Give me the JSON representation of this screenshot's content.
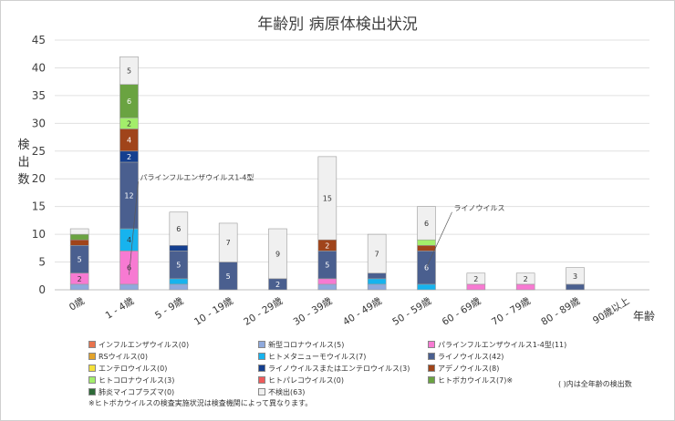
{
  "chart_data": {
    "type": "bar",
    "stacked": true,
    "title": "年齢別 病原体検出状況",
    "ylabel": "検出数",
    "xlabel": "年齢",
    "ylim": [
      0,
      45
    ],
    "yticks": [
      0,
      5,
      10,
      15,
      20,
      25,
      30,
      35,
      40,
      45
    ],
    "grid": true,
    "legend_position": "bottom",
    "categories": [
      "0歳",
      "1 - 4歳",
      "5 - 9歳",
      "10 - 19歳",
      "20 - 29歳",
      "30 - 39歳",
      "40 - 49歳",
      "50 - 59歳",
      "60 - 69歳",
      "70 - 79歳",
      "80 - 89歳",
      "90歳以上"
    ],
    "series": [
      {
        "name": "インフルエンザウイルス(0)",
        "color": "#e8734d",
        "values": [
          0,
          0,
          0,
          0,
          0,
          0,
          0,
          0,
          0,
          0,
          0,
          0
        ]
      },
      {
        "name": "新型コロナウイルス(5)",
        "color": "#8fa9dc",
        "values": [
          1,
          1,
          1,
          0,
          0,
          1,
          1,
          0,
          0,
          0,
          0,
          0
        ]
      },
      {
        "name": "パラインフルエンザウイルス1-4型(11)",
        "color": "#f77ad2",
        "values": [
          2,
          6,
          0,
          0,
          0,
          1,
          0,
          0,
          1,
          1,
          0,
          0
        ]
      },
      {
        "name": "RSウイルス(0)",
        "color": "#e3a32a",
        "values": [
          0,
          0,
          0,
          0,
          0,
          0,
          0,
          0,
          0,
          0,
          0,
          0
        ]
      },
      {
        "name": "ヒトメタニューモウイルス(7)",
        "color": "#17b3ee",
        "values": [
          0,
          4,
          1,
          0,
          0,
          0,
          1,
          1,
          0,
          0,
          0,
          0
        ]
      },
      {
        "name": "ライノウイルス(42)",
        "color": "#4a5f8f",
        "values": [
          5,
          12,
          5,
          5,
          2,
          5,
          1,
          6,
          0,
          0,
          1,
          0
        ]
      },
      {
        "name": "エンテロウイルス(0)",
        "color": "#f5e13a",
        "values": [
          0,
          0,
          0,
          0,
          0,
          0,
          0,
          0,
          0,
          0,
          0,
          0
        ]
      },
      {
        "name": "ライノウイルスまたはエンテロウイルス(3)",
        "color": "#143f8f",
        "values": [
          0,
          2,
          1,
          0,
          0,
          0,
          0,
          0,
          0,
          0,
          0,
          0
        ]
      },
      {
        "name": "アデノウイルス(8)",
        "color": "#a0441a",
        "values": [
          1,
          4,
          0,
          0,
          0,
          2,
          0,
          1,
          0,
          0,
          0,
          0
        ]
      },
      {
        "name": "ヒトコロナウイルス(3)",
        "color": "#a3ee6b",
        "values": [
          0,
          2,
          0,
          0,
          0,
          0,
          0,
          1,
          0,
          0,
          0,
          0
        ]
      },
      {
        "name": "ヒトパレコウイルス(0)",
        "color": "#ef5a5a",
        "values": [
          0,
          0,
          0,
          0,
          0,
          0,
          0,
          0,
          0,
          0,
          0,
          0
        ]
      },
      {
        "name": "ヒトボカウイルス(7)※",
        "color": "#6aa341",
        "values": [
          1,
          6,
          0,
          0,
          0,
          0,
          0,
          0,
          0,
          0,
          0,
          0
        ]
      },
      {
        "name": "肺炎マイコプラズマ(0)",
        "color": "#2e6a38",
        "values": [
          0,
          0,
          0,
          0,
          0,
          0,
          0,
          0,
          0,
          0,
          0,
          0
        ]
      },
      {
        "name": "不検出(63)",
        "color": "#f0f0f0",
        "values": [
          1,
          5,
          6,
          7,
          9,
          15,
          7,
          6,
          2,
          2,
          3,
          0
        ]
      }
    ],
    "annotations": [
      {
        "text": "パラインフルエンザウイルス1-4型",
        "category": "1 - 4歳"
      },
      {
        "text": "ライノウイルス",
        "category": "50 - 59歳"
      }
    ]
  },
  "legend_note": "( )内は全年齢の検出数",
  "footnote": "※ヒトボカウイルスの検査実施状況は検査機関によって異なります。"
}
